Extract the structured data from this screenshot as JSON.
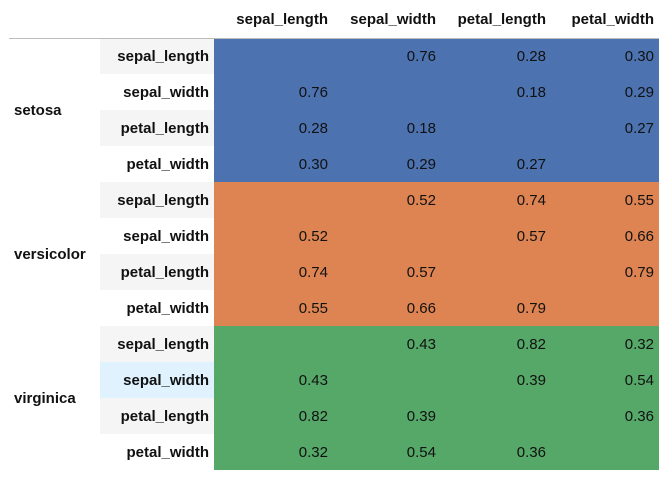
{
  "columns": [
    "sepal_length",
    "sepal_width",
    "petal_length",
    "petal_width"
  ],
  "colors": {
    "setosa": "#4c72b0",
    "versicolor": "#dd8452",
    "virginica": "#55a868",
    "stripe": "#f5f5f5",
    "hover": "#dff2fd"
  },
  "groups": [
    {
      "name": "setosa",
      "rows": [
        {
          "label": "sepal_length",
          "values": [
            "",
            "0.76",
            "0.28",
            "0.30"
          ]
        },
        {
          "label": "sepal_width",
          "values": [
            "0.76",
            "",
            "0.18",
            "0.29"
          ]
        },
        {
          "label": "petal_length",
          "values": [
            "0.28",
            "0.18",
            "",
            "0.27"
          ]
        },
        {
          "label": "petal_width",
          "values": [
            "0.30",
            "0.29",
            "0.27",
            ""
          ]
        }
      ]
    },
    {
      "name": "versicolor",
      "rows": [
        {
          "label": "sepal_length",
          "values": [
            "",
            "0.52",
            "0.74",
            "0.55"
          ]
        },
        {
          "label": "sepal_width",
          "values": [
            "0.52",
            "",
            "0.57",
            "0.66"
          ]
        },
        {
          "label": "petal_length",
          "values": [
            "0.74",
            "0.57",
            "",
            "0.79"
          ]
        },
        {
          "label": "petal_width",
          "values": [
            "0.55",
            "0.66",
            "0.79",
            ""
          ]
        }
      ]
    },
    {
      "name": "virginica",
      "rows": [
        {
          "label": "sepal_length",
          "values": [
            "",
            "0.43",
            "0.82",
            "0.32"
          ]
        },
        {
          "label": "sepal_width",
          "values": [
            "0.43",
            "",
            "0.39",
            "0.54"
          ]
        },
        {
          "label": "petal_length",
          "values": [
            "0.82",
            "0.39",
            "",
            "0.36"
          ]
        },
        {
          "label": "petal_width",
          "values": [
            "0.32",
            "0.54",
            "0.36",
            ""
          ]
        }
      ]
    }
  ],
  "chart_data": {
    "type": "table",
    "columns": [
      "sepal_length",
      "sepal_width",
      "petal_length",
      "petal_width"
    ],
    "row_groups": [
      "setosa",
      "versicolor",
      "virginica"
    ],
    "row_labels": [
      "sepal_length",
      "sepal_width",
      "petal_length",
      "petal_width"
    ],
    "values": {
      "setosa": [
        [
          null,
          0.76,
          0.28,
          0.3
        ],
        [
          0.76,
          null,
          0.18,
          0.29
        ],
        [
          0.28,
          0.18,
          null,
          0.27
        ],
        [
          0.3,
          0.29,
          0.27,
          null
        ]
      ],
      "versicolor": [
        [
          null,
          0.52,
          0.74,
          0.55
        ],
        [
          0.52,
          null,
          0.57,
          0.66
        ],
        [
          0.74,
          0.57,
          null,
          0.79
        ],
        [
          0.55,
          0.66,
          0.79,
          null
        ]
      ],
      "virginica": [
        [
          null,
          0.43,
          0.82,
          0.32
        ],
        [
          0.43,
          null,
          0.39,
          0.54
        ],
        [
          0.82,
          0.39,
          null,
          0.36
        ],
        [
          0.32,
          0.54,
          0.36,
          null
        ]
      ]
    }
  }
}
